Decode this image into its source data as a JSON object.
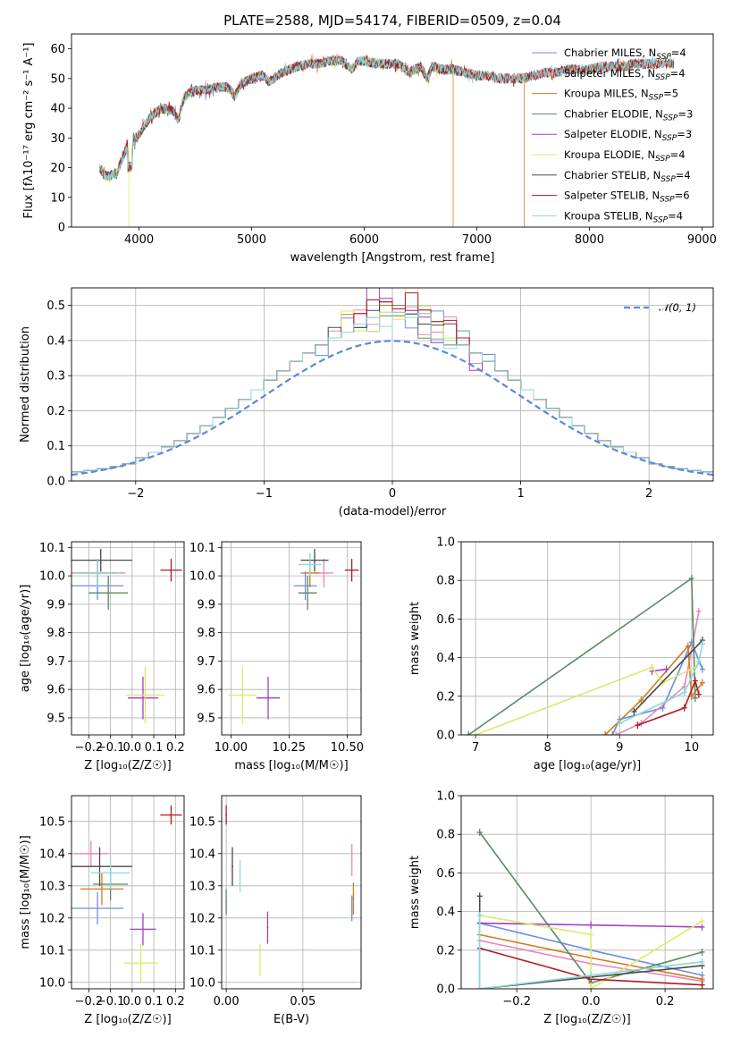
{
  "colors": [
    "#6b8ee0",
    "#e786b6",
    "#d17a20",
    "#5b8a66",
    "#a43fc2",
    "#d9ea6a",
    "#4a4a4a",
    "#b3191f",
    "#88dada"
  ],
  "chart_data": [
    {
      "type": "line",
      "id": "spectrum",
      "title": "PLATE=2588, MJD=54174, FIBERID=0509, z=0.04",
      "xlabel": "wavelength [Angstrom, rest frame]",
      "ylabel": "Flux [fλ10⁻¹⁷ erg cm⁻² s⁻¹ A⁻¹]",
      "xlim": [
        3400,
        9100
      ],
      "ylim": [
        0,
        65
      ],
      "xticks": [
        4000,
        5000,
        6000,
        7000,
        8000,
        9000
      ],
      "yticks": [
        0,
        10,
        20,
        30,
        40,
        50,
        60
      ],
      "grid": false,
      "legend_position": "top-right",
      "continuum": [
        [
          3650,
          20
        ],
        [
          3700,
          17
        ],
        [
          3800,
          18
        ],
        [
          3900,
          28
        ],
        [
          3950,
          29
        ],
        [
          4000,
          31
        ],
        [
          4100,
          37
        ],
        [
          4200,
          40
        ],
        [
          4300,
          39
        ],
        [
          4350,
          36
        ],
        [
          4400,
          44
        ],
        [
          4500,
          46
        ],
        [
          4600,
          46
        ],
        [
          4700,
          47
        ],
        [
          4800,
          47
        ],
        [
          4850,
          44
        ],
        [
          4900,
          48
        ],
        [
          5000,
          50
        ],
        [
          5100,
          51
        ],
        [
          5150,
          49
        ],
        [
          5200,
          50
        ],
        [
          5270,
          52
        ],
        [
          5400,
          54
        ],
        [
          5500,
          55
        ],
        [
          5600,
          55
        ],
        [
          5700,
          56
        ],
        [
          5800,
          56
        ],
        [
          5890,
          53
        ],
        [
          5950,
          56
        ],
        [
          6000,
          56
        ],
        [
          6100,
          55
        ],
        [
          6200,
          55
        ],
        [
          6300,
          55
        ],
        [
          6400,
          52
        ],
        [
          6500,
          54
        ],
        [
          6563,
          50
        ],
        [
          6600,
          54
        ],
        [
          6700,
          53
        ],
        [
          6800,
          53
        ],
        [
          6900,
          52
        ],
        [
          7000,
          51
        ],
        [
          7100,
          51
        ],
        [
          7200,
          50
        ],
        [
          7300,
          50
        ],
        [
          7400,
          50
        ],
        [
          7500,
          51
        ],
        [
          7600,
          52
        ],
        [
          7700,
          52
        ],
        [
          7800,
          53
        ],
        [
          7900,
          53
        ],
        [
          8000,
          53
        ],
        [
          8100,
          54
        ],
        [
          8200,
          54
        ],
        [
          8300,
          54
        ],
        [
          8400,
          55
        ],
        [
          8500,
          55
        ],
        [
          8600,
          55
        ],
        [
          8700,
          55
        ],
        [
          8800,
          55
        ]
      ],
      "dropouts": [
        {
          "series": 5,
          "x": 3910
        },
        {
          "series": 2,
          "x": 6790
        },
        {
          "series": 2,
          "x": 7420
        }
      ],
      "series": [
        {
          "name": "Chabrier MILES, N<sub>SSP</sub>=4",
          "xmax": 8750
        },
        {
          "name": "Salpeter MILES, N<sub>SSP</sub>=4",
          "xmax": 8750
        },
        {
          "name": "Kroupa MILES, N<sub>SSP</sub>=5",
          "xmax": 8750
        },
        {
          "name": "Chabrier ELODIE, N<sub>SSP</sub>=3",
          "xmax": 6790
        },
        {
          "name": "Salpeter ELODIE, N<sub>SSP</sub>=3",
          "xmax": 6790
        },
        {
          "name": "Kroupa ELODIE, N<sub>SSP</sub>=4",
          "xmax": 6790
        },
        {
          "name": "Chabrier STELIB, N<sub>SSP</sub>=4",
          "xmax": 8750
        },
        {
          "name": "Salpeter STELIB, N<sub>SSP</sub>=6",
          "xmax": 8750
        },
        {
          "name": "Kroupa STELIB, N<sub>SSP</sub>=4",
          "xmax": 8750
        }
      ]
    },
    {
      "type": "histogram",
      "id": "residuals",
      "xlabel": "(data-model)/error",
      "ylabel": "Normed distribution",
      "xlim": [
        -2.5,
        2.5
      ],
      "ylim": [
        0,
        0.55
      ],
      "xticks": [
        -2,
        -1,
        0,
        1,
        2
      ],
      "yticks": [
        0.0,
        0.1,
        0.2,
        0.3,
        0.4,
        0.5
      ],
      "grid": true,
      "bin_width": 0.1,
      "reference_curve": {
        "name": "𝒩(0, 1)",
        "mean": 0,
        "sigma": 1
      },
      "legend_position": "top-right",
      "perturbations": [
        {
          "0": 0.02,
          "1": -0.01,
          "2": 0.05,
          "-1": 0.06,
          "-2": -0.02,
          "3": 0.06,
          "-4": 0.04,
          "5": 0.04,
          "-6": -0.03,
          "7": 0.02
        },
        {
          "0": 0.04,
          "1": 0.05,
          "2": -0.02,
          "-1": 0.03,
          "-3": 0.05,
          "4": 0.06,
          "-5": 0.02,
          "6": -0.03
        },
        {
          "0": 0.02,
          "-1": 0.05,
          "1": 0.03,
          "2": 0.04,
          "-2": 0.02,
          "3": -0.02,
          "-4": 0.05,
          "5": 0.02
        },
        {
          "0": 0.05,
          "1": 0.04,
          "-1": 0.02,
          "2": -0.03,
          "-2": 0.07,
          "3": 0.03,
          "-3": 0.01,
          "4": -0.02
        },
        {
          "0": 0.03,
          "1": 0.04,
          "-1": 0.07,
          "-2": 0.11,
          "2": 0.03,
          "-3": 0.04,
          "3": -0.03,
          "6": -0.05
        },
        {
          "0": 0.01,
          "1": 0.13,
          "-1": 0.03,
          "2": 0.06,
          "-2": -0.02,
          "3": 0.03,
          "-3": -0.01,
          "-4": 0.06
        },
        {
          "0": 0.04,
          "1": 0.03,
          "-1": 0.06,
          "2": 0.01,
          "-2": 0.04,
          "3": 0.02,
          "4": 0.04,
          "-5": 0.03
        },
        {
          "0": 0.04,
          "1": 0.09,
          "-1": 0.06,
          "2": 0.05,
          "-2": 0.07,
          "3": 0.03,
          "-3": 0.04,
          "4": 0.05,
          "5": 0.02
        },
        {
          "0": 0.03,
          "1": 0.02,
          "-1": -0.01,
          "2": 0.04,
          "-2": 0.02,
          "3": -0.02,
          "-3": 0.01,
          "4": -0.03
        }
      ]
    },
    {
      "type": "scatter",
      "id": "age_vs_Z",
      "xlabel": "Z [log₁₀(Z/Z☉)]",
      "ylabel": "age  [log₁₀(age/yr)]",
      "xlim": [
        -0.28,
        0.24
      ],
      "ylim": [
        9.44,
        10.12
      ],
      "xticks": [
        -0.2,
        -0.1,
        0.0,
        0.1,
        0.2
      ],
      "yticks": [
        9.5,
        9.6,
        9.7,
        9.8,
        9.9,
        10.0,
        10.1
      ],
      "grid": true,
      "points": [
        {
          "series": 0,
          "x": -0.16,
          "y": 9.965,
          "xerr": 0.12,
          "yerr": 0.05
        },
        {
          "series": 1,
          "x": -0.16,
          "y": 10.01,
          "xerr": 0.13,
          "yerr": 0.05
        },
        {
          "series": 2,
          "x": -0.16,
          "y": 10.01,
          "xerr": 0.09,
          "yerr": 0.05
        },
        {
          "series": 3,
          "x": -0.11,
          "y": 9.94,
          "xerr": 0.09,
          "yerr": 0.06
        },
        {
          "series": 4,
          "x": 0.05,
          "y": 9.57,
          "xerr": 0.07,
          "yerr": 0.075
        },
        {
          "series": 5,
          "x": 0.06,
          "y": 9.58,
          "xerr": 0.09,
          "yerr": 0.1
        },
        {
          "series": 6,
          "x": -0.145,
          "y": 10.055,
          "xerr": 0.145,
          "yerr": 0.04
        },
        {
          "series": 7,
          "x": 0.18,
          "y": 10.02,
          "xerr": 0.05,
          "yerr": 0.04
        },
        {
          "series": 8,
          "x": -0.16,
          "y": 10.01,
          "xerr": 0.1,
          "yerr": 0.05
        }
      ]
    },
    {
      "type": "scatter",
      "id": "age_vs_mass",
      "xlabel": "mass [log₁₀(M/M☉)]",
      "ylabel": "",
      "xlim": [
        9.96,
        10.56
      ],
      "ylim": [
        9.44,
        10.12
      ],
      "xticks": [
        10.0,
        10.25,
        10.5
      ],
      "yticks": [
        9.5,
        9.6,
        9.7,
        9.8,
        9.9,
        10.0,
        10.1
      ],
      "grid": true,
      "points": [
        {
          "series": 0,
          "x": 10.32,
          "y": 9.965,
          "xerr": 0.05,
          "yerr": 0.05
        },
        {
          "series": 1,
          "x": 10.4,
          "y": 10.01,
          "xerr": 0.04,
          "yerr": 0.05
        },
        {
          "series": 2,
          "x": 10.34,
          "y": 10.01,
          "xerr": 0.04,
          "yerr": 0.05
        },
        {
          "series": 3,
          "x": 10.33,
          "y": 9.94,
          "xerr": 0.04,
          "yerr": 0.06
        },
        {
          "series": 4,
          "x": 10.16,
          "y": 9.57,
          "xerr": 0.05,
          "yerr": 0.075
        },
        {
          "series": 5,
          "x": 10.05,
          "y": 9.58,
          "xerr": 0.06,
          "yerr": 0.1
        },
        {
          "series": 6,
          "x": 10.36,
          "y": 10.055,
          "xerr": 0.06,
          "yerr": 0.04
        },
        {
          "series": 7,
          "x": 10.52,
          "y": 10.02,
          "xerr": 0.03,
          "yerr": 0.04
        },
        {
          "series": 8,
          "x": 10.34,
          "y": 10.04,
          "xerr": 0.05,
          "yerr": 0.04
        }
      ]
    },
    {
      "type": "line",
      "id": "massweight_vs_age",
      "xlabel": "age  [log₁₀(age/yr)]",
      "ylabel": "mass weight",
      "xlim": [
        6.8,
        10.3
      ],
      "ylim": [
        0,
        1.0
      ],
      "xticks": [
        7,
        8,
        9,
        10
      ],
      "yticks": [
        0.0,
        0.2,
        0.4,
        0.6,
        0.8,
        1.0
      ],
      "grid": true,
      "series": [
        {
          "points": [
            [
              8.9,
              0.0
            ],
            [
              9.0,
              0.08
            ],
            [
              9.6,
              0.14
            ],
            [
              10.0,
              0.48
            ],
            [
              10.15,
              0.34
            ]
          ]
        },
        {
          "points": [
            [
              8.95,
              0.0
            ],
            [
              9.3,
              0.06
            ],
            [
              9.9,
              0.25
            ],
            [
              10.1,
              0.64
            ]
          ]
        },
        {
          "points": [
            [
              8.8,
              0.0
            ],
            [
              9.3,
              0.18
            ],
            [
              9.95,
              0.46
            ],
            [
              10.0,
              0.2
            ],
            [
              10.15,
              0.27
            ]
          ]
        },
        {
          "points": [
            [
              6.9,
              0.0
            ],
            [
              10.0,
              0.81
            ],
            [
              10.05,
              0.19
            ]
          ]
        },
        {
          "points": [
            [
              9.45,
              0.33
            ],
            [
              9.65,
              0.34
            ]
          ]
        },
        {
          "points": [
            [
              7.0,
              0.0
            ],
            [
              9.45,
              0.35
            ],
            [
              9.6,
              0.27
            ],
            [
              10.05,
              0.35
            ]
          ]
        },
        {
          "points": [
            [
              9.2,
              0.12
            ],
            [
              10.15,
              0.49
            ]
          ]
        },
        {
          "points": [
            [
              9.25,
              0.05
            ],
            [
              9.9,
              0.14
            ],
            [
              10.05,
              0.28
            ],
            [
              10.1,
              0.21
            ]
          ]
        },
        {
          "points": [
            [
              9.0,
              0.06
            ],
            [
              9.9,
              0.22
            ],
            [
              10.1,
              0.38
            ],
            [
              10.15,
              0.47
            ]
          ]
        }
      ]
    },
    {
      "type": "scatter",
      "id": "mass_vs_Z",
      "xlabel": "Z [log₁₀(Z/Z☉)]",
      "ylabel": "mass [log₁₀(M/M☉)]",
      "xlim": [
        -0.28,
        0.24
      ],
      "ylim": [
        9.98,
        10.58
      ],
      "xticks": [
        -0.2,
        -0.1,
        0.0,
        0.1,
        0.2
      ],
      "yticks": [
        10.0,
        10.1,
        10.2,
        10.3,
        10.4,
        10.5
      ],
      "grid": true,
      "points": [
        {
          "series": 0,
          "x": -0.16,
          "y": 10.23,
          "xerr": 0.12,
          "yerr": 0.05
        },
        {
          "series": 1,
          "x": -0.19,
          "y": 10.4,
          "xerr": 0.08,
          "yerr": 0.04
        },
        {
          "series": 2,
          "x": -0.14,
          "y": 10.29,
          "xerr": 0.1,
          "yerr": 0.05
        },
        {
          "series": 3,
          "x": -0.1,
          "y": 10.305,
          "xerr": 0.08,
          "yerr": 0.05
        },
        {
          "series": 4,
          "x": 0.05,
          "y": 10.165,
          "xerr": 0.06,
          "yerr": 0.05
        },
        {
          "series": 5,
          "x": 0.04,
          "y": 10.06,
          "xerr": 0.08,
          "yerr": 0.06
        },
        {
          "series": 6,
          "x": -0.15,
          "y": 10.36,
          "xerr": 0.15,
          "yerr": 0.06
        },
        {
          "series": 7,
          "x": 0.18,
          "y": 10.52,
          "xerr": 0.05,
          "yerr": 0.03
        },
        {
          "series": 8,
          "x": -0.1,
          "y": 10.34,
          "xerr": 0.09,
          "yerr": 0.05
        }
      ]
    },
    {
      "type": "scatter",
      "id": "mass_vs_EBV",
      "xlabel": "E(B-V)",
      "ylabel": "",
      "xlim": [
        -0.003,
        0.088
      ],
      "ylim": [
        9.98,
        10.58
      ],
      "xticks": [
        0.0,
        0.05
      ],
      "yticks": [
        10.0,
        10.1,
        10.2,
        10.3,
        10.4,
        10.5
      ],
      "grid": true,
      "points": [
        {
          "series": 0,
          "x": 0.082,
          "y": 10.23,
          "yerr": 0.04
        },
        {
          "series": 1,
          "x": 0.082,
          "y": 10.38,
          "yerr": 0.05
        },
        {
          "series": 2,
          "x": 0.083,
          "y": 10.26,
          "yerr": 0.05
        },
        {
          "series": 3,
          "x": 0.0,
          "y": 10.25,
          "yerr": 0.04
        },
        {
          "series": 4,
          "x": 0.027,
          "y": 10.17,
          "yerr": 0.05
        },
        {
          "series": 5,
          "x": 0.022,
          "y": 10.07,
          "yerr": 0.05
        },
        {
          "series": 6,
          "x": 0.004,
          "y": 10.36,
          "yerr": 0.06
        },
        {
          "series": 7,
          "x": 0.0,
          "y": 10.52,
          "yerr": 0.03
        },
        {
          "series": 8,
          "x": 0.009,
          "y": 10.33,
          "yerr": 0.05
        }
      ]
    },
    {
      "type": "line",
      "id": "massweight_vs_Z",
      "xlabel": "Z [log₁₀(Z/Z☉)]",
      "ylabel": "mass weight",
      "xlim": [
        -0.35,
        0.33
      ],
      "ylim": [
        0,
        1.0
      ],
      "xticks": [
        -0.2,
        0.0,
        0.2
      ],
      "yticks": [
        0.0,
        0.2,
        0.4,
        0.6,
        0.8,
        1.0
      ],
      "grid": true,
      "series": [
        {
          "points": [
            [
              -0.3,
              0.34
            ],
            [
              0.0,
              0.2
            ],
            [
              0.3,
              0.07
            ]
          ]
        },
        {
          "points": [
            [
              -0.3,
              0.25
            ],
            [
              0.0,
              0.13
            ],
            [
              0.3,
              0.04
            ]
          ]
        },
        {
          "points": [
            [
              -0.3,
              0.28
            ],
            [
              0.0,
              0.16
            ],
            [
              0.3,
              0.05
            ]
          ]
        },
        {
          "points": [
            [
              -0.3,
              0.81
            ],
            [
              0.0,
              0.03
            ],
            [
              0.3,
              0.19
            ]
          ]
        },
        {
          "points": [
            [
              -0.3,
              0.34
            ],
            [
              0.0,
              0.33
            ],
            [
              0.3,
              0.32
            ]
          ]
        },
        {
          "points": [
            [
              -0.3,
              0.38
            ],
            [
              0.0,
              0.28
            ],
            [
              0.0,
              0.0
            ],
            [
              0.3,
              0.35
            ]
          ]
        },
        {
          "points": [
            [
              -0.3,
              0.48
            ],
            [
              -0.3,
              0.0
            ],
            [
              0.0,
              0.06
            ],
            [
              0.3,
              0.12
            ]
          ]
        },
        {
          "points": [
            [
              -0.3,
              0.21
            ],
            [
              0.0,
              0.05
            ],
            [
              0.3,
              0.02
            ]
          ]
        },
        {
          "points": [
            [
              -0.3,
              0.38
            ],
            [
              -0.3,
              0.0
            ],
            [
              0.0,
              0.07
            ],
            [
              0.3,
              0.14
            ]
          ]
        }
      ]
    }
  ]
}
